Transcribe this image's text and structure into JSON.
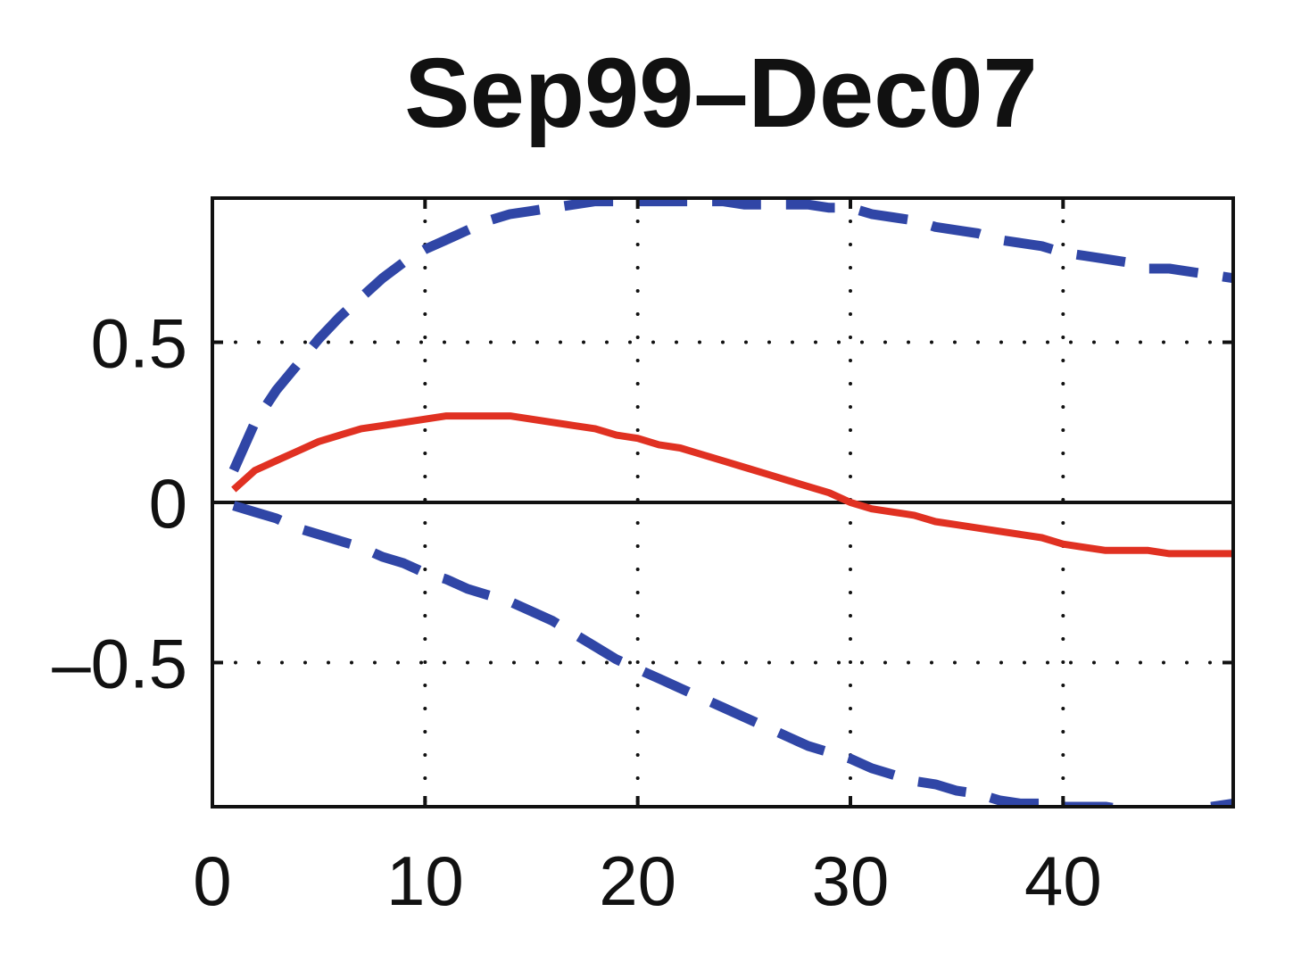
{
  "chart_data": {
    "type": "line",
    "title": "Sep99–Dec07",
    "xlabel": "",
    "ylabel": "",
    "xlim": [
      0,
      48
    ],
    "ylim": [
      -0.95,
      0.95
    ],
    "grid": true,
    "x_ticks": [
      0,
      10,
      20,
      30,
      40
    ],
    "x_tick_labels": [
      "0",
      "10",
      "20",
      "30",
      "40"
    ],
    "y_ticks": [
      -0.5,
      0,
      0.5
    ],
    "y_tick_labels": [
      "–0.5",
      "0",
      "0.5"
    ],
    "zero_line": true,
    "colors": {
      "response": "#e03122",
      "band": "#3046a6",
      "axis": "#111111"
    },
    "series": [
      {
        "style": "solid",
        "color": "#e03122",
        "x": [
          1,
          2,
          3,
          4,
          5,
          6,
          7,
          8,
          9,
          10,
          11,
          12,
          13,
          14,
          15,
          16,
          17,
          18,
          19,
          20,
          21,
          22,
          23,
          24,
          25,
          26,
          27,
          28,
          29,
          30,
          31,
          32,
          33,
          34,
          35,
          36,
          37,
          38,
          39,
          40,
          41,
          42,
          43,
          44,
          45,
          46,
          47,
          48
        ],
        "y": [
          0.04,
          0.1,
          0.13,
          0.16,
          0.19,
          0.21,
          0.23,
          0.24,
          0.25,
          0.26,
          0.27,
          0.27,
          0.27,
          0.27,
          0.26,
          0.25,
          0.24,
          0.23,
          0.21,
          0.2,
          0.18,
          0.17,
          0.15,
          0.13,
          0.11,
          0.09,
          0.07,
          0.05,
          0.03,
          0.0,
          -0.02,
          -0.03,
          -0.04,
          -0.06,
          -0.07,
          -0.08,
          -0.09,
          -0.1,
          -0.11,
          -0.13,
          -0.14,
          -0.15,
          -0.15,
          -0.15,
          -0.16,
          -0.16,
          -0.16,
          -0.16
        ]
      },
      {
        "style": "dashed",
        "color": "#3046a6",
        "x": [
          1,
          2,
          3,
          4,
          5,
          6,
          7,
          8,
          9,
          10,
          11,
          12,
          13,
          14,
          15,
          16,
          17,
          18,
          19,
          20,
          21,
          22,
          23,
          24,
          25,
          26,
          27,
          28,
          29,
          30,
          31,
          32,
          33,
          34,
          35,
          36,
          37,
          38,
          39,
          40,
          41,
          42,
          43,
          44,
          45,
          46,
          47,
          48
        ],
        "y": [
          0.1,
          0.25,
          0.35,
          0.43,
          0.51,
          0.58,
          0.64,
          0.7,
          0.75,
          0.79,
          0.82,
          0.85,
          0.88,
          0.9,
          0.91,
          0.92,
          0.93,
          0.94,
          0.94,
          0.94,
          0.94,
          0.94,
          0.94,
          0.94,
          0.93,
          0.93,
          0.93,
          0.93,
          0.92,
          0.92,
          0.9,
          0.89,
          0.88,
          0.86,
          0.85,
          0.84,
          0.82,
          0.81,
          0.8,
          0.78,
          0.77,
          0.76,
          0.75,
          0.73,
          0.73,
          0.72,
          0.71,
          0.7
        ]
      },
      {
        "style": "dashed",
        "color": "#3046a6",
        "x": [
          1,
          2,
          3,
          4,
          5,
          6,
          7,
          8,
          9,
          10,
          11,
          12,
          13,
          14,
          15,
          16,
          17,
          18,
          19,
          20,
          21,
          22,
          23,
          24,
          25,
          26,
          27,
          28,
          29,
          30,
          31,
          32,
          33,
          34,
          35,
          36,
          37,
          38,
          39,
          40,
          41,
          42,
          43,
          44,
          45,
          46,
          47,
          48
        ],
        "y": [
          -0.01,
          -0.03,
          -0.05,
          -0.08,
          -0.1,
          -0.12,
          -0.14,
          -0.17,
          -0.19,
          -0.22,
          -0.24,
          -0.27,
          -0.29,
          -0.31,
          -0.34,
          -0.37,
          -0.41,
          -0.45,
          -0.49,
          -0.52,
          -0.55,
          -0.58,
          -0.61,
          -0.64,
          -0.67,
          -0.7,
          -0.73,
          -0.76,
          -0.78,
          -0.8,
          -0.83,
          -0.85,
          -0.87,
          -0.88,
          -0.9,
          -0.91,
          -0.93,
          -0.94,
          -0.94,
          -0.95,
          -0.95,
          -0.95,
          -0.96,
          -0.96,
          -0.96,
          -0.96,
          -0.95,
          -0.94
        ]
      }
    ]
  }
}
